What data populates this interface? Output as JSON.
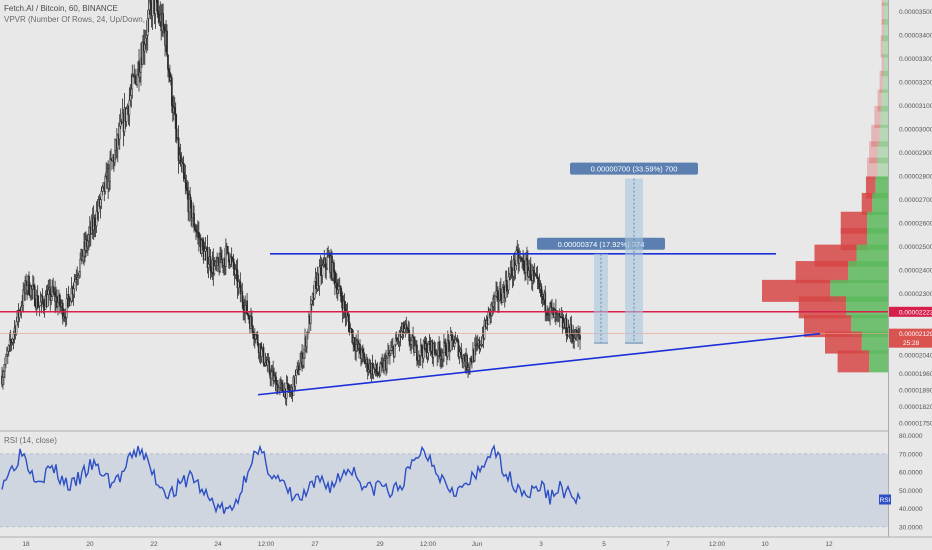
{
  "header": {
    "symbol_line": "Fetch.AI / Bitcoin, 60, BINANCE",
    "indicator_line": "VPVR (Number Of Rows, 24, Up/Down,",
    "rsi_label": "RSI (14, close)"
  },
  "colors": {
    "background": "#e8e8e8",
    "candle": "#2a2a2a",
    "trend_line": "#1b2fd9",
    "horizontal_line": "#d61f4a",
    "rsi_line": "#2d4fc6",
    "rsi_band": "#c9d1dc",
    "vp_up": "#5cb85c",
    "vp_down": "#d64545",
    "price_tag": "#d9534f",
    "measure": "#a9c4dd"
  },
  "chart_data": {
    "type": "candlestick",
    "price_axis": {
      "ticks": [
        "0.00003500",
        "0.00003400",
        "0.00003300",
        "0.00003200",
        "0.00003100",
        "0.00003000",
        "0.00002900",
        "0.00002800",
        "0.00002700",
        "0.00002600",
        "0.00002500",
        "0.00002400",
        "0.00002300",
        "0.00002223",
        "0.00002129",
        "0.00002040",
        "0.00001960",
        "0.00001890",
        "0.00001820",
        "0.00001750"
      ],
      "range": [
        1.72e-05,
        3.55e-05
      ]
    },
    "time_axis": {
      "ticks": [
        "18",
        "20",
        "22",
        "24",
        "12:00",
        "27",
        "29",
        "12:00",
        "Jun",
        "3",
        "5",
        "7",
        "12:00",
        "10",
        "12"
      ]
    },
    "close_series": [
      1.95e-05,
      2.15e-05,
      2.35e-05,
      2.25e-05,
      2.3e-05,
      2.22e-05,
      2.4e-05,
      2.55e-05,
      2.72e-05,
      2.9e-05,
      3.1e-05,
      3.3e-05,
      3.55e-05,
      3.4e-05,
      2.9e-05,
      2.65e-05,
      2.48e-05,
      2.4e-05,
      2.48e-05,
      2.3e-05,
      2.15e-05,
      2e-05,
      1.9e-05,
      1.88e-05,
      2.05e-05,
      2.35e-05,
      2.45e-05,
      2.28e-05,
      2.1e-05,
      2e-05,
      1.96e-05,
      2.05e-05,
      2.15e-05,
      2.05e-05,
      2.07e-05,
      2.05e-05,
      2.1e-05,
      2e-05,
      2.08e-05,
      2.25e-05,
      2.32e-05,
      2.45e-05,
      2.4e-05,
      2.28e-05,
      2.2e-05,
      2.15e-05,
      2.1e-05
    ],
    "current_price": "0.00002129",
    "current_countdown": "25:28",
    "horizontal_level": 2.223e-05,
    "resistance_level": 2.47e-05,
    "support_trendline": {
      "from": 1.87e-05,
      "to": 2.13e-05
    },
    "measurements": [
      {
        "label": "0.00000374 (17.92%) 374",
        "base": 2.09e-05,
        "top": 2.47e-05
      },
      {
        "label": "0.00000700 (33.59%) 700",
        "base": 2.09e-05,
        "top": 2.79e-05
      }
    ],
    "volume_profile": [
      {
        "price_bin": 3.57e-05,
        "up": 0.4,
        "down": 0.2
      },
      {
        "price_bin": 3.49e-05,
        "up": 0.4,
        "down": 0.2
      },
      {
        "price_bin": 3.42e-05,
        "up": 0.4,
        "down": 0.2
      },
      {
        "price_bin": 3.35e-05,
        "up": 0.5,
        "down": 0.2
      },
      {
        "price_bin": 3.27e-05,
        "up": 0.4,
        "down": 0.2
      },
      {
        "price_bin": 3.2e-05,
        "up": 0.5,
        "down": 0.3
      },
      {
        "price_bin": 3.12e-05,
        "up": 0.6,
        "down": 0.4
      },
      {
        "price_bin": 3.05e-05,
        "up": 0.7,
        "down": 0.6
      },
      {
        "price_bin": 2.97e-05,
        "up": 0.8,
        "down": 0.8
      },
      {
        "price_bin": 2.9e-05,
        "up": 1.0,
        "down": 0.8
      },
      {
        "price_bin": 2.83e-05,
        "up": 1.0,
        "down": 1.0
      },
      {
        "price_bin": 2.75e-05,
        "up": 1.2,
        "down": 0.9
      },
      {
        "price_bin": 2.68e-05,
        "up": 1.5,
        "down": 1.0
      },
      {
        "price_bin": 2.6e-05,
        "up": 2.0,
        "down": 2.5
      },
      {
        "price_bin": 2.53e-05,
        "up": 2.0,
        "down": 2.5
      },
      {
        "price_bin": 2.46e-05,
        "up": 3.0,
        "down": 4.0
      },
      {
        "price_bin": 2.39e-05,
        "up": 3.8,
        "down": 5.0
      },
      {
        "price_bin": 2.31e-05,
        "up": 5.5,
        "down": 6.5
      },
      {
        "price_bin": 2.24e-05,
        "up": 4.0,
        "down": 4.5
      },
      {
        "price_bin": 2.16e-05,
        "up": 3.5,
        "down": 4.5
      },
      {
        "price_bin": 2.09e-05,
        "up": 2.5,
        "down": 3.5
      },
      {
        "price_bin": 2.01e-05,
        "up": 1.8,
        "down": 3.0
      }
    ],
    "rsi": {
      "ticks": [
        "80.0000",
        "70.0000",
        "60.0000",
        "50.0000",
        "40.0000",
        "30.0000"
      ],
      "range": [
        25,
        82
      ],
      "band": [
        30,
        70
      ],
      "label": "RSI",
      "series": [
        55,
        62,
        72,
        60,
        57,
        63,
        56,
        52,
        58,
        64,
        60,
        54,
        58,
        68,
        73,
        60,
        52,
        48,
        53,
        59,
        50,
        44,
        40,
        38,
        50,
        68,
        70,
        60,
        54,
        47,
        45,
        51,
        56,
        52,
        58,
        63,
        55,
        50,
        54,
        48,
        53,
        62,
        72,
        68,
        58,
        52,
        50,
        55,
        60,
        72,
        66,
        56,
        51,
        48,
        53,
        46,
        52,
        47,
        45
      ]
    }
  }
}
